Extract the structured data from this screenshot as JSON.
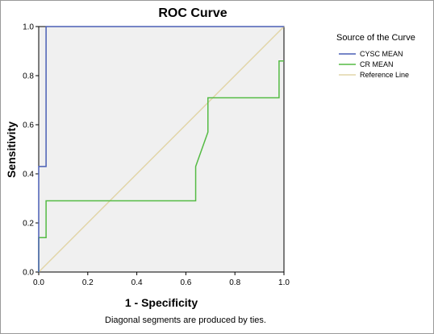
{
  "chart_data": {
    "type": "line",
    "title": "ROC Curve",
    "xlabel": "1 - Specificity",
    "ylabel": "Sensitivity",
    "xlim": [
      0,
      1
    ],
    "ylim": [
      0,
      1
    ],
    "xticks": [
      "0.0",
      "0.2",
      "0.4",
      "0.6",
      "0.8",
      "1.0"
    ],
    "yticks": [
      "0.0",
      "0.2",
      "0.4",
      "0.6",
      "0.8",
      "1.0"
    ],
    "grid": false,
    "legend_title": "Source of the Curve",
    "legend_position": "right",
    "series": [
      {
        "name": "CYSC MEAN",
        "color": "#4a5fb5",
        "x": [
          0.0,
          0.0,
          0.03,
          0.03,
          1.0
        ],
        "y": [
          0.0,
          0.43,
          0.43,
          1.0,
          1.0
        ]
      },
      {
        "name": "CR MEAN",
        "color": "#55bb44",
        "x": [
          0.0,
          0.0,
          0.03,
          0.03,
          0.64,
          0.64,
          0.69,
          0.69,
          0.98,
          0.98,
          1.0
        ],
        "y": [
          0.0,
          0.14,
          0.14,
          0.29,
          0.29,
          0.43,
          0.57,
          0.71,
          0.71,
          0.86,
          0.86
        ]
      },
      {
        "name": "Reference Line",
        "color": "#e2d5a8",
        "x": [
          0.0,
          1.0
        ],
        "y": [
          0.0,
          1.0
        ]
      }
    ],
    "footnote": "Diagonal segments are produced by ties."
  }
}
